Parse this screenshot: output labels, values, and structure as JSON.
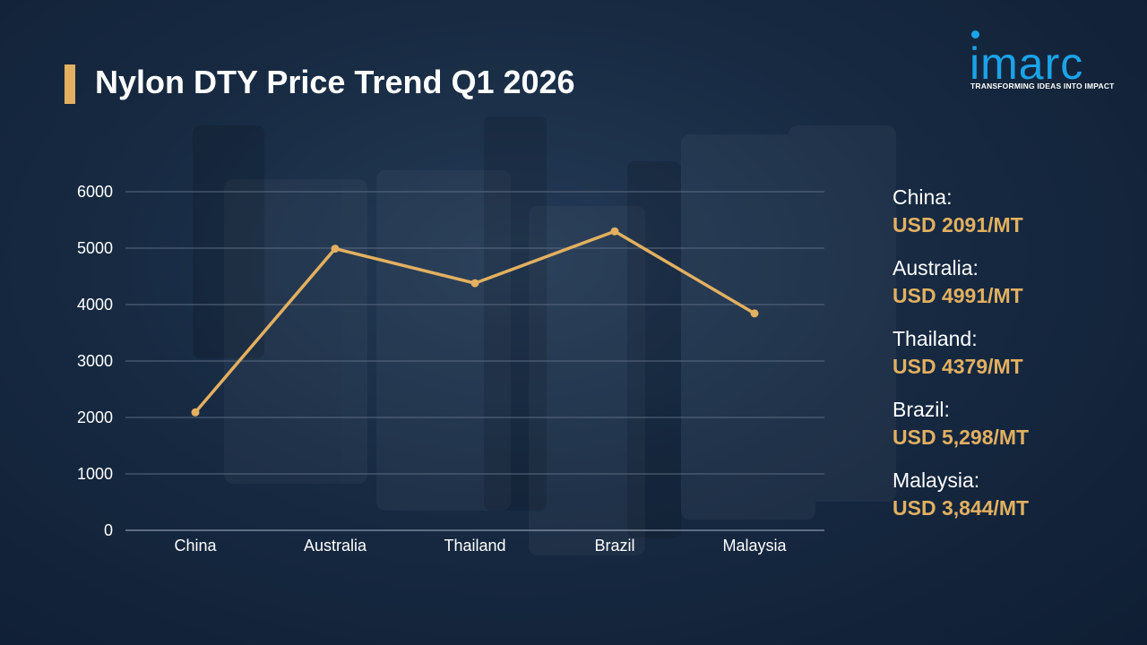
{
  "title": "Nylon DTY Price Trend Q1 2026",
  "brand": {
    "name": "imarc",
    "tagline": "TRANSFORMING IDEAS INTO IMPACT"
  },
  "colors": {
    "accent": "#e2b060",
    "brand": "#1ba3e8",
    "background": "#172a42",
    "text": "#ffffff"
  },
  "chart_data": {
    "type": "line",
    "title": "",
    "xlabel": "",
    "ylabel": "",
    "categories": [
      "China",
      "Australia",
      "Thailand",
      "Brazil",
      "Malaysia"
    ],
    "series": [
      {
        "values": [
          2091,
          4991,
          4379,
          5298,
          3844
        ]
      }
    ],
    "ylim": [
      0,
      6000
    ],
    "yticks": [
      0,
      1000,
      2000,
      3000,
      4000,
      5000,
      6000
    ],
    "grid": true,
    "legend": "none"
  },
  "legend_panel": [
    {
      "country": "China:",
      "price": "USD 2091/MT"
    },
    {
      "country": "Australia:",
      "price": "USD 4991/MT"
    },
    {
      "country": "Thailand:",
      "price": "USD 4379/MT"
    },
    {
      "country": "Brazil:",
      "price": "USD 5,298/MT"
    },
    {
      "country": "Malaysia:",
      "price": "USD 3,844/MT"
    }
  ]
}
